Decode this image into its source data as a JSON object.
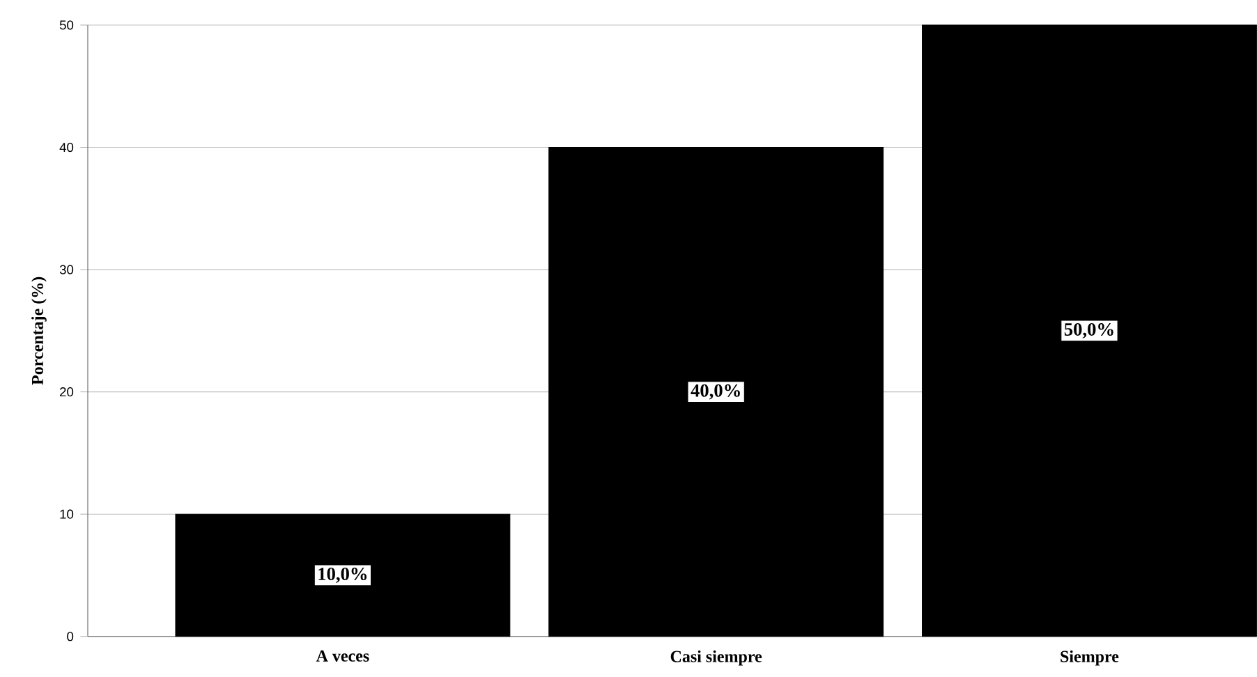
{
  "chart_data": {
    "type": "bar",
    "ylabel": "Porcentaje (%)",
    "categories": [
      "A veces",
      "Casi siempre",
      "Siempre"
    ],
    "values": [
      10,
      40,
      50
    ],
    "color": "#000000",
    "value_labels": [
      "10,0%",
      "40,0%",
      "50,0%"
    ],
    "ylim": [
      0,
      50
    ],
    "yticks": [
      0,
      10,
      20,
      30,
      40,
      50
    ],
    "grid": "y"
  }
}
